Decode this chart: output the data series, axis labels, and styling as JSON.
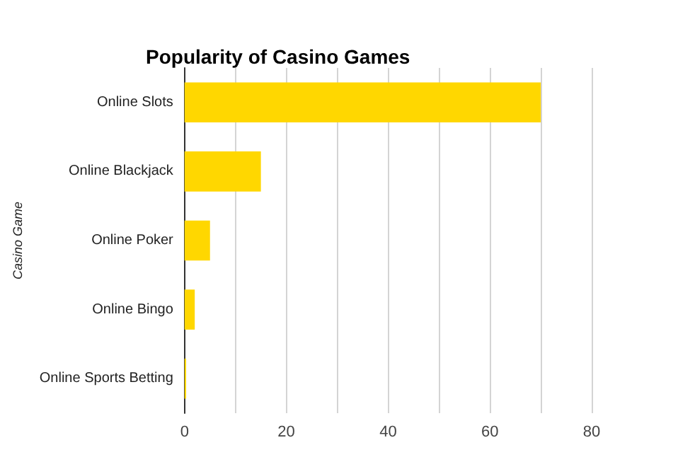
{
  "chart_data": {
    "type": "bar",
    "orientation": "horizontal",
    "title": "Popularity of Casino Games",
    "ylabel": "Casino Game",
    "categories": [
      "Online Slots",
      "Online Blackjack",
      "Online Poker",
      "Online Bingo",
      "Online Sports Betting"
    ],
    "values": [
      70,
      15,
      5,
      2,
      0.3
    ],
    "color": "#ffd700",
    "xlim": [
      0,
      80
    ],
    "xticks": [
      0,
      {
        "value": 10,
        "label": null
      },
      20,
      {
        "value": 30,
        "label": null
      },
      40,
      {
        "value": 50,
        "label": null
      },
      60,
      {
        "value": 70,
        "label": null
      },
      80
    ],
    "grid": "x"
  }
}
